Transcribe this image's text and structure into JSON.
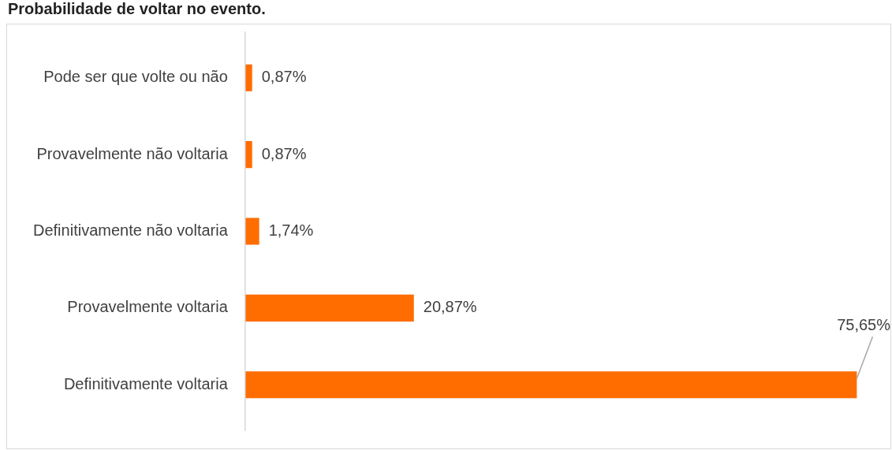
{
  "chart_data": {
    "type": "bar",
    "orientation": "horizontal",
    "title": "Probabilidade de voltar no evento.",
    "categories": [
      "Pode ser que volte ou não",
      "Provavelmente não voltaria",
      "Definitivamente não voltaria",
      "Provavelmente voltaria",
      "Definitivamente voltaria"
    ],
    "values": [
      0.87,
      0.87,
      1.74,
      20.87,
      75.65
    ],
    "value_labels": [
      "0,87%",
      "0,87%",
      "1,74%",
      "20,87%",
      "75,65%"
    ],
    "color": "#ff6d00",
    "grid": false,
    "legend": false
  }
}
